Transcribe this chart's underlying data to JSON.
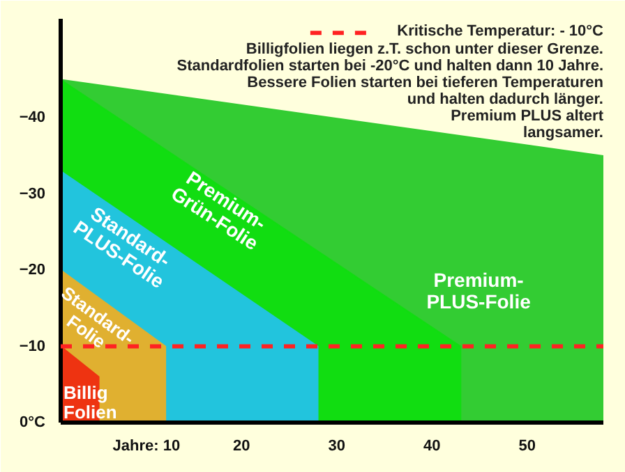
{
  "chart_data": {
    "type": "area",
    "xlim": [
      1,
      58
    ],
    "ylim": [
      0,
      -53
    ],
    "xticks": [
      {
        "value": 10,
        "label": "Jahre: 10"
      },
      20,
      30,
      40,
      50
    ],
    "yticks": [
      {
        "value": 0,
        "label": "0°C"
      },
      -10,
      -20,
      -30,
      -40
    ],
    "grid": false,
    "legend": "top right",
    "series": [
      {
        "name": "Premium-\nPLUS-Folie",
        "color": "#33cc33",
        "x": [
          1,
          58
        ],
        "values": [
          -45,
          -35
        ]
      },
      {
        "name": "Premium-\nGrün-Folie",
        "color": "#11dd11",
        "x": [
          1,
          43,
          43
        ],
        "values": [
          -45,
          -10,
          0
        ]
      },
      {
        "name": "Standard-\nPLUS-Folie",
        "color": "#22c4dd",
        "x": [
          1,
          28,
          28
        ],
        "values": [
          -33,
          -10,
          0
        ]
      },
      {
        "name": "Standard-\nFolie",
        "color": "#e0b030",
        "x": [
          1,
          12,
          12
        ],
        "values": [
          -20,
          -10,
          0
        ]
      },
      {
        "name": "Billig\nFolien",
        "color": "#ee3311",
        "x": [
          1,
          5,
          5
        ],
        "values": [
          -10,
          -6,
          0
        ]
      }
    ],
    "ref_lines": [
      {
        "axis": "y",
        "value": -10,
        "label": "Kritische Temperatur: - 10°C",
        "color": "#ff2222",
        "line_style": "dashed"
      }
    ],
    "annotations": [
      "Billigfolien liegen z.T. schon unter dieser Grenze.\nStandardfolien starten bei -20°C und halten dann 10 Jahre.\nBessere Folien starten bei tieferen Temperaturen\nund halten dadurch länger.\nPremium PLUS altert\nlangsamer."
    ]
  }
}
